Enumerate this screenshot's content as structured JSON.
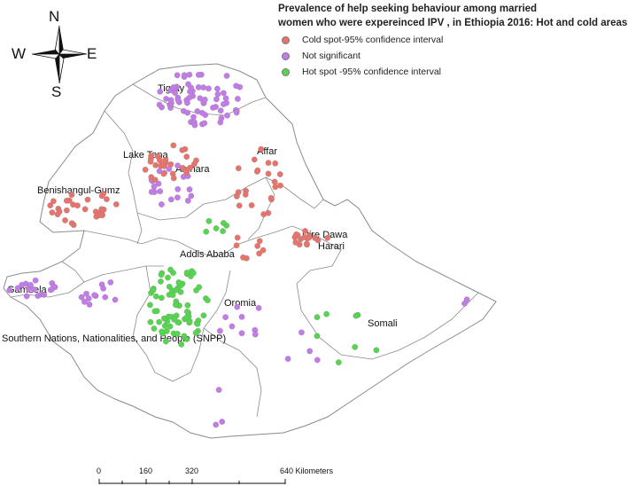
{
  "title_line1": "Prevalence of help seeking behaviour among married",
  "title_line2": "women who were expereinced IPV , in Ethiopia 2016: Hot and cold areas",
  "legend": [
    {
      "label": "Cold spot-95% confidence interval",
      "color": "#e8736b"
    },
    {
      "label": "Not significant",
      "color": "#c27be8"
    },
    {
      "label": "Hot spot -95% confidence interval",
      "color": "#54d64e"
    }
  ],
  "compass": {
    "n": "N",
    "s": "S",
    "e": "E",
    "w": "W"
  },
  "regions": {
    "tigray": "Tigray",
    "lake_tana": "Lake Tana",
    "amhara": "Amhara",
    "affar": "Affar",
    "benishangul": "Benishangul-Gumz",
    "dire_dawa": "Dire Dawa",
    "harari": "Harari",
    "addis_ababa": "Addis Ababa",
    "gambela": "Gambela",
    "oromia": "Oromia",
    "somali": "Somali",
    "snnp": "Southern Nations, Nationalities, and People (SNPP)"
  },
  "scale": {
    "t0": "0",
    "t1": "160",
    "t2": "320",
    "t3": "640 Kilometers"
  }
}
